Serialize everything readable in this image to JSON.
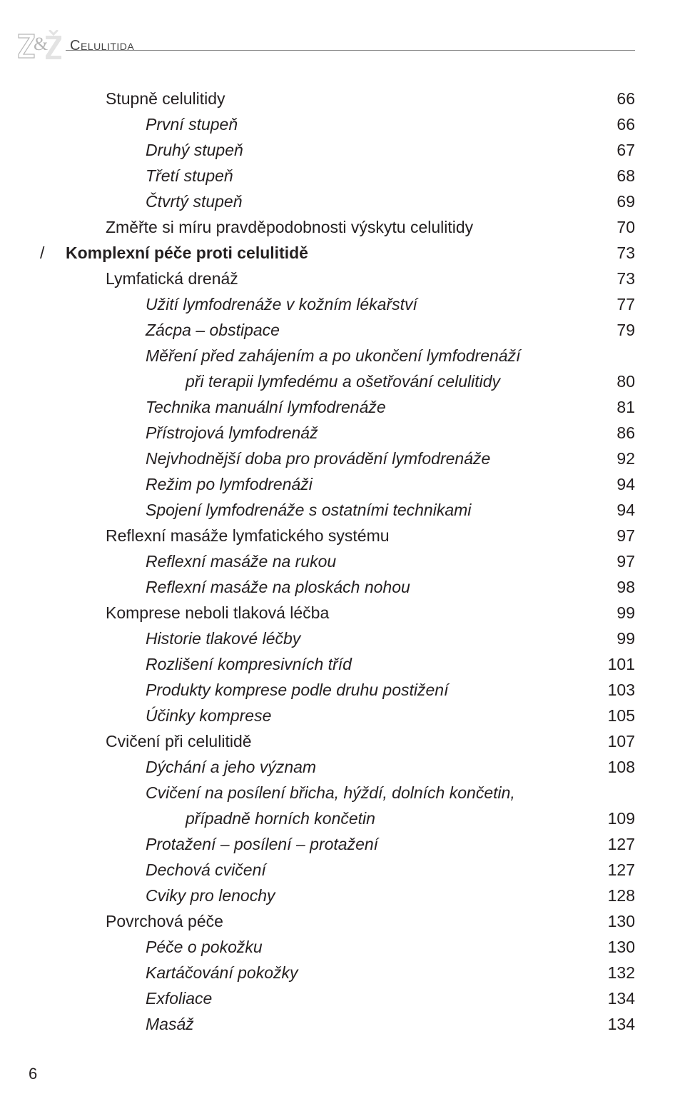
{
  "header": {
    "running_title": "Celulitida"
  },
  "page_number": "6",
  "toc": [
    {
      "label": "Stupně celulitidy",
      "page": "66",
      "indent": 1,
      "italic": false,
      "bold": false
    },
    {
      "label": "První stupeň",
      "page": "66",
      "indent": 2,
      "italic": true,
      "bold": false
    },
    {
      "label": "Druhý stupeň",
      "page": "67",
      "indent": 2,
      "italic": true,
      "bold": false
    },
    {
      "label": "Třetí stupeň",
      "page": "68",
      "indent": 2,
      "italic": true,
      "bold": false
    },
    {
      "label": "Čtvrtý stupeň",
      "page": "69",
      "indent": 2,
      "italic": true,
      "bold": false
    },
    {
      "label": "Změřte si míru pravděpodobnosti výskytu celulitidy",
      "page": "70",
      "indent": 1,
      "italic": false,
      "bold": false
    },
    {
      "label": "Komplexní péče proti celulitidě",
      "page": "73",
      "indent": 0,
      "italic": false,
      "bold": true,
      "slash": true
    },
    {
      "label": "Lymfatická drenáž",
      "page": "73",
      "indent": 1,
      "italic": false,
      "bold": false
    },
    {
      "label": "Užití lymfodrenáže v kožním lékařství",
      "page": "77",
      "indent": 2,
      "italic": true,
      "bold": false
    },
    {
      "label": "Zácpa – obstipace",
      "page": "79",
      "indent": 2,
      "italic": true,
      "bold": false
    },
    {
      "label": "Měření před zahájením a po ukončení lymfodrenáží",
      "sub": "při terapii lymfedému a ošetřování celulitidy",
      "sub_indent": 3,
      "page": "80",
      "indent": 2,
      "italic": true,
      "bold": false
    },
    {
      "label": "Technika manuální lymfodrenáže",
      "page": "81",
      "indent": 2,
      "italic": true,
      "bold": false
    },
    {
      "label": "Přístrojová lymfodrenáž",
      "page": "86",
      "indent": 2,
      "italic": true,
      "bold": false
    },
    {
      "label": "Nejvhodnější doba pro provádění lymfodrenáže",
      "page": "92",
      "indent": 2,
      "italic": true,
      "bold": false
    },
    {
      "label": "Režim po lymfodrenáži",
      "page": "94",
      "indent": 2,
      "italic": true,
      "bold": false
    },
    {
      "label": "Spojení lymfodrenáže s ostatními technikami",
      "page": "94",
      "indent": 2,
      "italic": true,
      "bold": false
    },
    {
      "label": "Reflexní masáže lymfatického systému",
      "page": "97",
      "indent": 1,
      "italic": false,
      "bold": false
    },
    {
      "label": "Reflexní masáže na rukou",
      "page": "97",
      "indent": 2,
      "italic": true,
      "bold": false
    },
    {
      "label": "Reflexní masáže na ploskách nohou",
      "page": "98",
      "indent": 2,
      "italic": true,
      "bold": false
    },
    {
      "label": "Komprese neboli tlaková léčba",
      "page": "99",
      "indent": 1,
      "italic": false,
      "bold": false
    },
    {
      "label": "Historie tlakové léčby",
      "page": "99",
      "indent": 2,
      "italic": true,
      "bold": false
    },
    {
      "label": "Rozlišení kompresivních tříd",
      "page": "101",
      "indent": 2,
      "italic": true,
      "bold": false
    },
    {
      "label": "Produkty komprese podle druhu postižení",
      "page": "103",
      "indent": 2,
      "italic": true,
      "bold": false
    },
    {
      "label": "Účinky komprese",
      "page": "105",
      "indent": 2,
      "italic": true,
      "bold": false
    },
    {
      "label": "Cvičení při celulitidě",
      "page": "107",
      "indent": 1,
      "italic": false,
      "bold": false
    },
    {
      "label": "Dýchání a jeho význam",
      "page": "108",
      "indent": 2,
      "italic": true,
      "bold": false
    },
    {
      "label": "Cvičení na posílení břicha, hýždí, dolních končetin,",
      "sub": "případně horních končetin",
      "sub_indent": 3,
      "page": "109",
      "indent": 2,
      "italic": true,
      "bold": false
    },
    {
      "label": "Protažení – posílení – protažení",
      "page": "127",
      "indent": 2,
      "italic": true,
      "bold": false
    },
    {
      "label": "Dechová cvičení",
      "page": "127",
      "indent": 2,
      "italic": true,
      "bold": false
    },
    {
      "label": "Cviky pro lenochy",
      "page": "128",
      "indent": 2,
      "italic": true,
      "bold": false
    },
    {
      "label": "Povrchová péče",
      "page": "130",
      "indent": 1,
      "italic": false,
      "bold": false
    },
    {
      "label": "Péče o pokožku",
      "page": "130",
      "indent": 2,
      "italic": true,
      "bold": false
    },
    {
      "label": "Kartáčování pokožky",
      "page": "132",
      "indent": 2,
      "italic": true,
      "bold": false
    },
    {
      "label": "Exfoliace",
      "page": "134",
      "indent": 2,
      "italic": true,
      "bold": false
    },
    {
      "label": "Masáž",
      "page": "134",
      "indent": 2,
      "italic": true,
      "bold": false
    }
  ],
  "colors": {
    "text": "#231f20",
    "rule": "#888888",
    "logo_outline": "#b6b6b6",
    "logo_fill": "#e3e3e3",
    "background": "#ffffff"
  }
}
